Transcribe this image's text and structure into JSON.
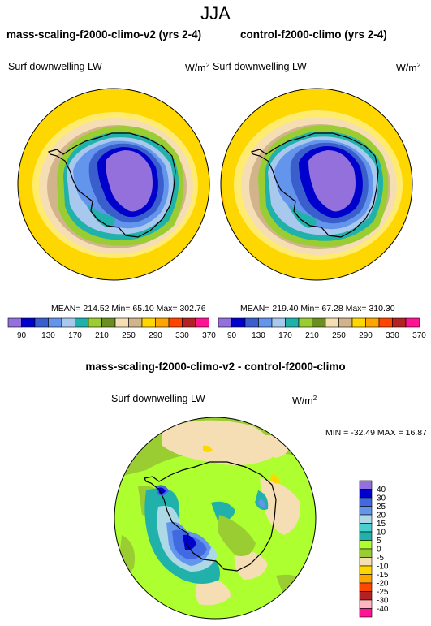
{
  "season": "JJA",
  "panels": [
    {
      "title": "mass-scaling-f2000-climo-v2 (yrs 2-4)",
      "variable": "Surf downwelling LW",
      "units": "W/m",
      "units_exp": "2",
      "stats": "MEAN= 214.52  Min=  65.10  Max= 302.76"
    },
    {
      "title": "control-f2000-climo (yrs 2-4)",
      "variable": "Surf downwelling LW",
      "units": "W/m",
      "units_exp": "2",
      "stats": "MEAN= 219.40  Min=  67.28  Max= 310.30"
    }
  ],
  "diff_panel": {
    "title": "mass-scaling-f2000-climo-v2 - control-f2000-climo",
    "variable": "Surf downwelling LW",
    "units": "W/m",
    "units_exp": "2",
    "stats": "MIN = -32.49 MAX =  16.87"
  },
  "field_colorbar": {
    "colors": [
      "#9370db",
      "#0000cd",
      "#3a5fcd",
      "#6495ed",
      "#a9c8ee",
      "#20b2aa",
      "#9acd32",
      "#6b8e23",
      "#f5deb3",
      "#d2b48c",
      "#ffd700",
      "#ffa500",
      "#ff4500",
      "#b22222",
      "#ff1493"
    ],
    "labels": [
      "90",
      "130",
      "170",
      "210",
      "250",
      "290",
      "330",
      "370"
    ]
  },
  "diff_colorbar": {
    "colors": [
      "#9370db",
      "#0000cd",
      "#4169e1",
      "#6495ed",
      "#add8e6",
      "#48d1cc",
      "#20b2aa",
      "#adff2f",
      "#9acd32",
      "#f5deb3",
      "#ffd700",
      "#ffa500",
      "#ff4500",
      "#b22222",
      "#ffb6c1",
      "#ff1493"
    ],
    "labels": [
      "40",
      "30",
      "25",
      "20",
      "15",
      "10",
      "5",
      "0",
      "-5",
      "-10",
      "-15",
      "-20",
      "-25",
      "-30",
      "-40"
    ]
  }
}
